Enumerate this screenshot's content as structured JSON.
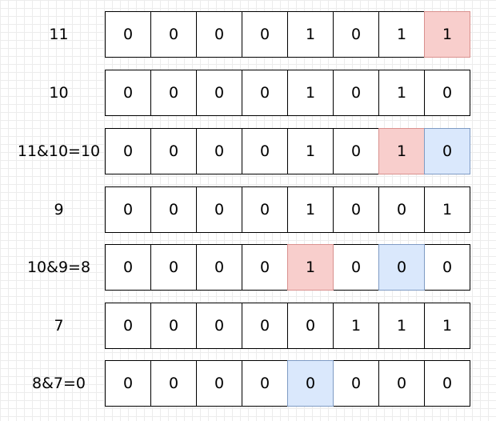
{
  "rows": [
    {
      "label": "11",
      "bits": [
        "0",
        "0",
        "0",
        "0",
        "1",
        "0",
        "1",
        "1"
      ],
      "highlight": [
        "",
        "",
        "",
        "",
        "",
        "",
        "",
        "red"
      ]
    },
    {
      "label": "10",
      "bits": [
        "0",
        "0",
        "0",
        "0",
        "1",
        "0",
        "1",
        "0"
      ],
      "highlight": [
        "",
        "",
        "",
        "",
        "",
        "",
        "",
        ""
      ]
    },
    {
      "label": "11&10=10",
      "bits": [
        "0",
        "0",
        "0",
        "0",
        "1",
        "0",
        "1",
        "0"
      ],
      "highlight": [
        "",
        "",
        "",
        "",
        "",
        "",
        "red",
        "blue"
      ]
    },
    {
      "label": "9",
      "bits": [
        "0",
        "0",
        "0",
        "0",
        "1",
        "0",
        "0",
        "1"
      ],
      "highlight": [
        "",
        "",
        "",
        "",
        "",
        "",
        "",
        ""
      ]
    },
    {
      "label": "10&9=8",
      "bits": [
        "0",
        "0",
        "0",
        "0",
        "1",
        "0",
        "0",
        "0"
      ],
      "highlight": [
        "",
        "",
        "",
        "",
        "red",
        "",
        "blue",
        ""
      ]
    },
    {
      "label": "7",
      "bits": [
        "0",
        "0",
        "0",
        "0",
        "0",
        "1",
        "1",
        "1"
      ],
      "highlight": [
        "",
        "",
        "",
        "",
        "",
        "",
        "",
        ""
      ]
    },
    {
      "label": "8&7=0",
      "bits": [
        "0",
        "0",
        "0",
        "0",
        "0",
        "0",
        "0",
        "0"
      ],
      "highlight": [
        "",
        "",
        "",
        "",
        "blue",
        "",
        "",
        ""
      ]
    }
  ],
  "colors": {
    "red_fill": "#f8cecc",
    "blue_fill": "#dae8fc"
  }
}
